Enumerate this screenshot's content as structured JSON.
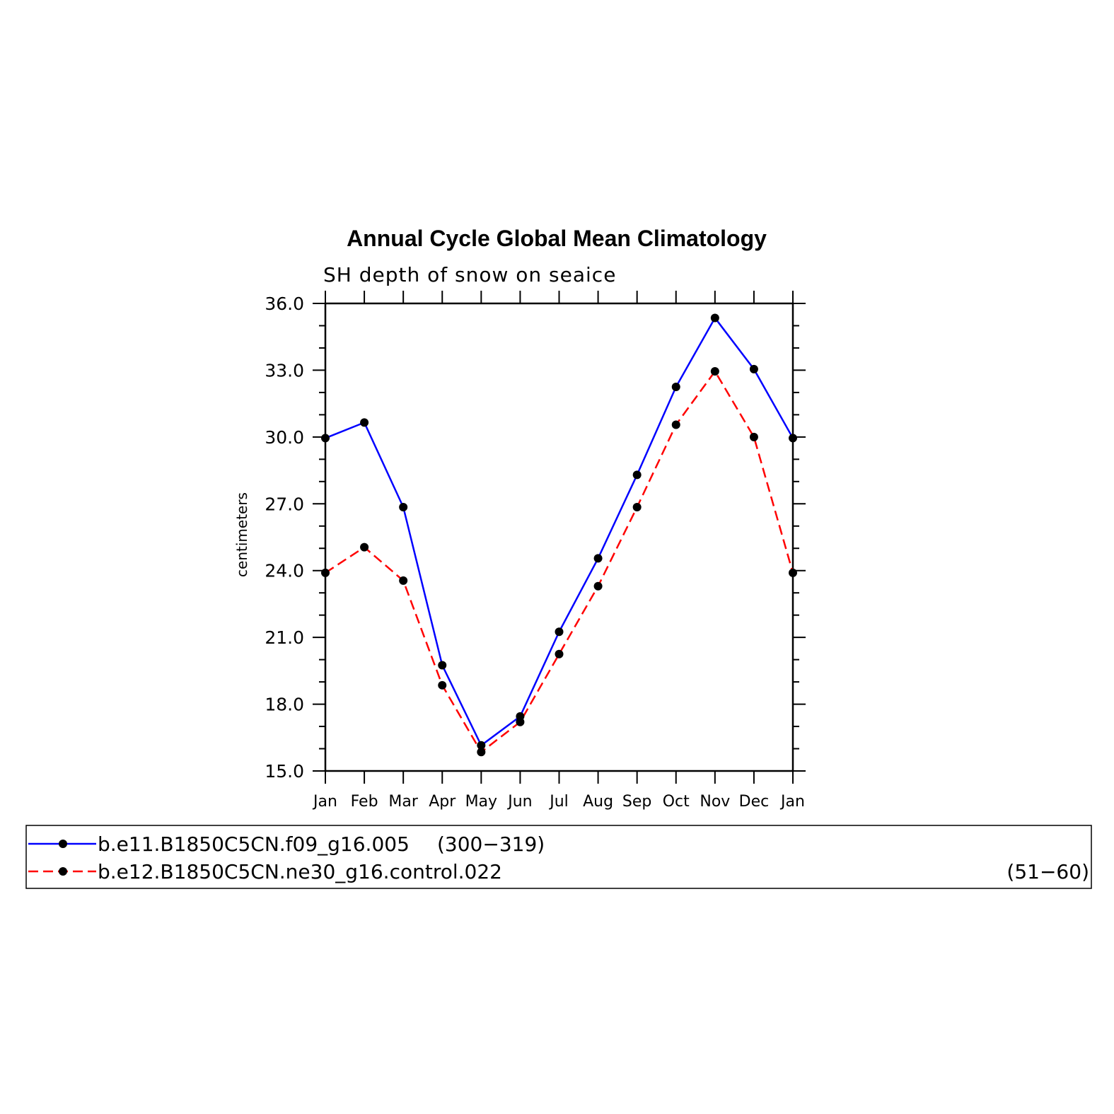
{
  "chart_data": {
    "type": "line",
    "title": "Annual Cycle Global Mean Climatology",
    "subtitle": "SH depth of snow on seaice",
    "xlabel": "",
    "ylabel": "centimeters",
    "categories": [
      "Jan",
      "Feb",
      "Mar",
      "Apr",
      "May",
      "Jun",
      "Jul",
      "Aug",
      "Sep",
      "Oct",
      "Nov",
      "Dec",
      "Jan"
    ],
    "ylim": [
      15.0,
      36.0
    ],
    "yticks": [
      "15.0",
      "18.0",
      "21.0",
      "24.0",
      "27.0",
      "30.0",
      "33.0",
      "36.0"
    ],
    "grid": false,
    "legend_position": "bottom",
    "series": [
      {
        "name": "b.e11.B1850C5CN.f09_g16.005",
        "years": "(300−319)",
        "color": "#0000ff",
        "dash": "solid",
        "values": [
          29.95,
          30.65,
          26.85,
          19.75,
          16.15,
          17.45,
          21.25,
          24.55,
          28.3,
          32.25,
          35.35,
          33.05,
          29.95
        ]
      },
      {
        "name": "b.e12.B1850C5CN.ne30_g16.control.022",
        "years": "(51−60)",
        "color": "#ff0000",
        "dash": "dashed",
        "values": [
          23.9,
          25.05,
          23.55,
          18.85,
          15.85,
          17.2,
          20.25,
          23.3,
          26.85,
          30.55,
          32.95,
          30.0,
          23.9
        ]
      }
    ]
  }
}
